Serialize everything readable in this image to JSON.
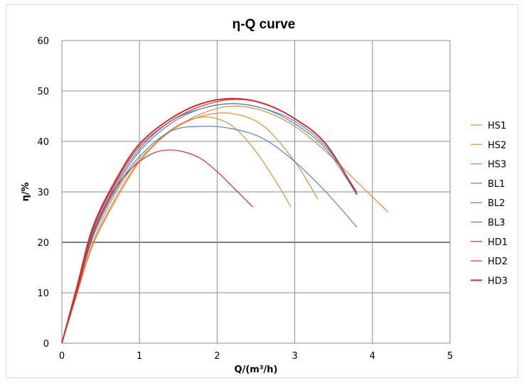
{
  "chart_data": {
    "type": "line",
    "title": "η-Q  curve",
    "xlabel": "Q/(m³/h)",
    "ylabel": "η/%",
    "xlim": [
      0,
      5
    ],
    "ylim": [
      0,
      60
    ],
    "x_ticks": [
      "0",
      "1",
      "2",
      "3",
      "4",
      "5"
    ],
    "y_ticks": [
      "0",
      "10",
      "20",
      "30",
      "40",
      "50",
      "60"
    ],
    "grid": true,
    "legend_position": "right",
    "colors": {
      "HS": "#e08a3c",
      "BL": "#5a82b4",
      "HD": "#cc3030",
      "grid": "#8c8c8c",
      "grid_major": "#7f7f7f"
    },
    "series": [
      {
        "name": "HS1",
        "group": "HS",
        "x": [
          0,
          0.2,
          0.4,
          0.7,
          1.0,
          1.4,
          1.8,
          2.2,
          2.6,
          3.0,
          3.4,
          3.8,
          4.2
        ],
        "y": [
          0,
          10,
          20,
          30,
          36.5,
          42,
          45.5,
          47,
          46,
          43,
          38,
          32,
          26
        ]
      },
      {
        "name": "HS2",
        "group": "HS",
        "x": [
          0,
          0.2,
          0.4,
          0.7,
          1.0,
          1.4,
          1.8,
          2.2,
          2.6,
          3.0,
          3.3
        ],
        "y": [
          0,
          10,
          19.5,
          29,
          36,
          42,
          45,
          45.5,
          43,
          36,
          28.5
        ]
      },
      {
        "name": "HS3",
        "group": "HS",
        "x": [
          0,
          0.2,
          0.4,
          0.7,
          1.0,
          1.3,
          1.6,
          1.9,
          2.2,
          2.5,
          2.8,
          2.95
        ],
        "y": [
          0,
          10,
          19.5,
          28.5,
          36,
          41,
          44,
          44.8,
          43,
          38,
          31,
          27
        ]
      },
      {
        "name": "BL1",
        "group": "BL",
        "x": [
          0,
          0.2,
          0.4,
          0.7,
          1.0,
          1.4,
          1.8,
          2.2,
          2.6,
          3.0,
          3.4,
          3.8
        ],
        "y": [
          0,
          10.5,
          21,
          30.5,
          37,
          42,
          43,
          42.5,
          40.5,
          36,
          30,
          23
        ]
      },
      {
        "name": "BL2",
        "group": "BL",
        "x": [
          0,
          0.2,
          0.4,
          0.7,
          1.0,
          1.4,
          1.8,
          2.2,
          2.6,
          3.0,
          3.4,
          3.8
        ],
        "y": [
          0,
          10.5,
          21.5,
          31,
          38,
          43.5,
          46.5,
          47.5,
          46.5,
          44,
          39,
          30
        ]
      },
      {
        "name": "BL3",
        "group": "BL",
        "x": [
          0,
          0.2,
          0.4,
          0.7,
          1.0,
          1.4,
          1.8,
          2.2,
          2.6,
          3.0,
          3.4,
          3.8
        ],
        "y": [
          0,
          11,
          22,
          31.5,
          38.5,
          44,
          46.5,
          47.5,
          46.5,
          43.5,
          38.5,
          29.5
        ]
      },
      {
        "name": "HD1",
        "group": "HD",
        "x": [
          0,
          0.2,
          0.4,
          0.7,
          1.0,
          1.4,
          1.8,
          2.2,
          2.6,
          3.0,
          3.4,
          3.8
        ],
        "y": [
          0,
          11,
          22.5,
          32,
          39,
          44,
          47,
          48.3,
          47.5,
          44.5,
          39.5,
          29.5
        ]
      },
      {
        "name": "HD2",
        "group": "HD",
        "x": [
          0,
          0.2,
          0.4,
          0.6,
          0.8,
          1.0,
          1.2,
          1.4,
          1.6,
          1.8,
          2.0,
          2.2,
          2.46
        ],
        "y": [
          0,
          10.5,
          21.5,
          28.5,
          33,
          36,
          37.8,
          38.3,
          37.8,
          36.5,
          34,
          31,
          27
        ]
      },
      {
        "name": "HD3",
        "group": "HD",
        "x": [
          0,
          0.2,
          0.4,
          0.7,
          1.0,
          1.4,
          1.8,
          2.2,
          2.6,
          3.0,
          3.4,
          3.8
        ],
        "y": [
          0,
          11.5,
          23,
          32.5,
          39.5,
          44.5,
          47.5,
          48.5,
          47.5,
          44.5,
          39.5,
          29.5
        ]
      }
    ]
  }
}
